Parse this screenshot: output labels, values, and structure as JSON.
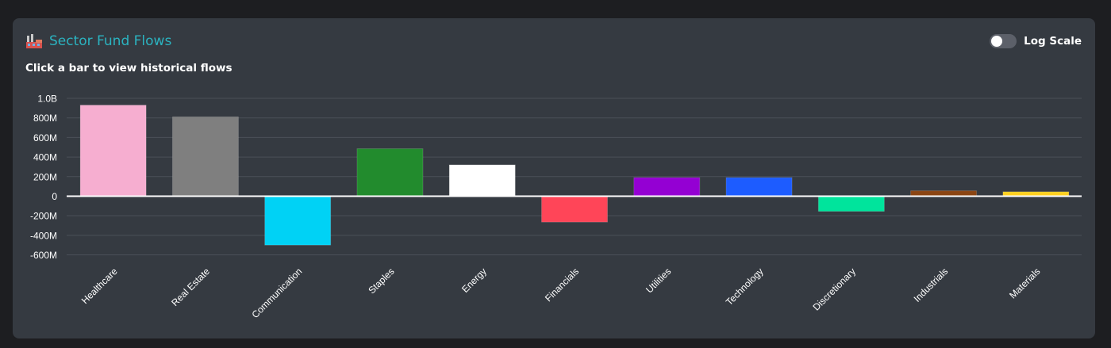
{
  "header": {
    "title": "Sector Fund Flows",
    "icon": "factory-icon",
    "subtitle": "Click a bar to view historical flows",
    "log_scale_label": "Log Scale",
    "log_scale_on": false
  },
  "colors": {
    "title": "#2bb3c0",
    "card": "#353a41",
    "grid": "#4b5058",
    "zero_line": "#ffffff"
  },
  "chart_data": {
    "type": "bar",
    "categories": [
      "Healthcare",
      "Real Estate",
      "Communication",
      "Staples",
      "Energy",
      "Financials",
      "Utilities",
      "Technology",
      "Discretionary",
      "Industrials",
      "Materials"
    ],
    "values": [
      930000000,
      810000000,
      -500000000,
      485000000,
      320000000,
      -265000000,
      190000000,
      190000000,
      -155000000,
      55000000,
      45000000
    ],
    "bar_colors": [
      "#f6aed0",
      "#7f7f7f",
      "#00d2f5",
      "#228b2d",
      "#ffffff",
      "#ff4558",
      "#9400d3",
      "#1d5cff",
      "#00e49c",
      "#8b4513",
      "#ffd020"
    ],
    "ylim": [
      -600000000,
      1000000000
    ],
    "yticks": [
      1000000000,
      800000000,
      600000000,
      400000000,
      200000000,
      0,
      -200000000,
      -400000000,
      -600000000
    ],
    "ytick_labels": [
      "1.0B",
      "800M",
      "600M",
      "400M",
      "200M",
      "0",
      "-200M",
      "-400M",
      "-600M"
    ],
    "grid": true,
    "legend": "none"
  }
}
